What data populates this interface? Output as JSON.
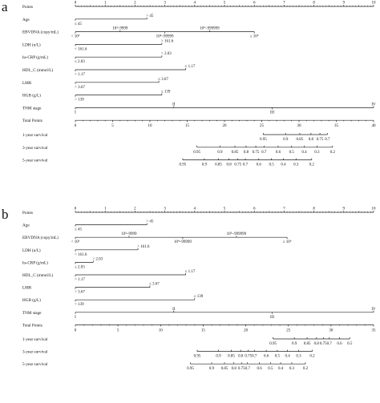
{
  "chart_data": [
    {
      "type": "nomogram",
      "panel": "a",
      "points_axis": {
        "ticks": [
          "0",
          "1",
          "2",
          "3",
          "4",
          "5",
          "6",
          "7",
          "8",
          "9",
          "10"
        ]
      },
      "rows": [
        {
          "label": "Points",
          "kind": "points_scale"
        },
        {
          "label": "Age",
          "ticks": [
            {
              "label": "> 45",
              "value": 2.4
            },
            {
              "label": "≤ 45",
              "value": 0
            }
          ]
        },
        {
          "label": "EBVDNA (copy/mL)",
          "ticks": [
            {
              "label": "< 10³",
              "value": 0
            },
            {
              "label": "10³~9999",
              "value": 1.5
            },
            {
              "label": "10⁴~99999",
              "value": 3
            },
            {
              "label": "10⁵~999999",
              "value": 4.5
            },
            {
              "label": "≥ 10⁶",
              "value": 6.0
            }
          ]
        },
        {
          "label": "LDH (u/L)",
          "ticks": [
            {
              "label": "> 161.6",
              "value": 2.9
            },
            {
              "label": "< 161.6",
              "value": 0
            }
          ]
        },
        {
          "label": "hs-CRP (g/mL)",
          "ticks": [
            {
              "label": "> 2.03",
              "value": 2.9
            },
            {
              "label": "≤ 2.03",
              "value": 0
            }
          ]
        },
        {
          "label": "HDL_C (mmol/L)",
          "ticks": [
            {
              "label": "≤ 1.17",
              "value": 3.7
            },
            {
              "label": "> 1.17",
              "value": 0
            }
          ]
        },
        {
          "label": "LMR",
          "ticks": [
            {
              "label": "≤ 3.67",
              "value": 2.8
            },
            {
              "label": "> 3.67",
              "value": 0
            }
          ]
        },
        {
          "label": "HGB (g/L)",
          "ticks": [
            {
              "label": "≤ 139",
              "value": 2.9
            },
            {
              "label": "> 139",
              "value": 0
            }
          ]
        },
        {
          "label": "TNM stage",
          "ticks": [
            {
              "label": "I",
              "value": 0
            },
            {
              "label": "II",
              "value": 3.3
            },
            {
              "label": "III",
              "value": 6.6
            },
            {
              "label": "IV",
              "value": 10
            }
          ]
        }
      ],
      "total_points": {
        "label": "Total Points",
        "min": 0,
        "max": 40,
        "ticks": [
          "0",
          "5",
          "10",
          "15",
          "20",
          "25",
          "30",
          "35",
          "40"
        ]
      },
      "survival": [
        {
          "label": "1-year survival",
          "ticks": [
            {
              "label": "0.95",
              "points": 25.2
            },
            {
              "label": "0.9",
              "points": 28.2
            },
            {
              "label": "0.85",
              "points": 30.1
            },
            {
              "label": "0.8",
              "points": 31.6
            },
            {
              "label": "0.75",
              "points": 32.8
            },
            {
              "label": "0.7",
              "points": 33.8
            }
          ]
        },
        {
          "label": "3-year survival",
          "ticks": [
            {
              "label": "0.95",
              "points": 16.3
            },
            {
              "label": "0.9",
              "points": 19.4
            },
            {
              "label": "0.85",
              "points": 21.4
            },
            {
              "label": "0.8",
              "points": 22.9
            },
            {
              "label": "0.75",
              "points": 24.2
            },
            {
              "label": "0.7",
              "points": 25.3
            },
            {
              "label": "0.6",
              "points": 27.2
            },
            {
              "label": "0.5",
              "points": 29.0
            },
            {
              "label": "0.4",
              "points": 30.7
            },
            {
              "label": "0.3",
              "points": 32.4
            },
            {
              "label": "0.2",
              "points": 34.5
            }
          ]
        },
        {
          "label": "5-year survival",
          "ticks": [
            {
              "label": "0.95",
              "points": 14.4
            },
            {
              "label": "0.9",
              "points": 17.3
            },
            {
              "label": "0.85",
              "points": 19.2
            },
            {
              "label": "0.8",
              "points": 20.6
            },
            {
              "label": "0.75",
              "points": 21.8
            },
            {
              "label": "0.7",
              "points": 22.8
            },
            {
              "label": "0.6",
              "points": 24.6
            },
            {
              "label": "0.5",
              "points": 26.3
            },
            {
              "label": "0.4",
              "points": 27.9
            },
            {
              "label": "0.3",
              "points": 29.6
            },
            {
              "label": "0.2",
              "points": 31.7
            }
          ]
        }
      ]
    },
    {
      "type": "nomogram",
      "panel": "b",
      "points_axis": {
        "ticks": [
          "0",
          "1",
          "2",
          "3",
          "4",
          "5",
          "6",
          "7",
          "8",
          "9",
          "10"
        ]
      },
      "rows": [
        {
          "label": "Points",
          "kind": "points_scale"
        },
        {
          "label": "Age",
          "ticks": [
            {
              "label": "> 45",
              "value": 2.4
            },
            {
              "label": "≤ 45",
              "value": 0
            }
          ]
        },
        {
          "label": "EBVDNA (copy/mL)",
          "ticks": [
            {
              "label": "< 10³",
              "value": 0
            },
            {
              "label": "10³~9999",
              "value": 1.8
            },
            {
              "label": "10⁴~99999",
              "value": 3.6
            },
            {
              "label": "10⁵~999999",
              "value": 5.4
            },
            {
              "label": "≥ 10⁶",
              "value": 7.1
            }
          ]
        },
        {
          "label": "LDH (u/L)",
          "ticks": [
            {
              "label": "> 161.6",
              "value": 2.1
            },
            {
              "label": "< 161.6",
              "value": 0
            }
          ]
        },
        {
          "label": "hs-CRP (g/mL)",
          "ticks": [
            {
              "label": "> 2.03",
              "value": 0.6
            },
            {
              "label": "≤ 2.03",
              "value": 0
            }
          ]
        },
        {
          "label": "HDL_C (mmol/L)",
          "ticks": [
            {
              "label": "≤ 1.17",
              "value": 3.7
            },
            {
              "label": "> 1.17",
              "value": 0
            }
          ]
        },
        {
          "label": "LMR",
          "ticks": [
            {
              "label": "≤ 3.67",
              "value": 2.5
            },
            {
              "label": "> 3.67",
              "value": 0
            }
          ]
        },
        {
          "label": "HGB (g/L)",
          "ticks": [
            {
              "label": "≤ 139",
              "value": 4.0
            },
            {
              "label": "> 139",
              "value": 0
            }
          ]
        },
        {
          "label": "TNM stage",
          "ticks": [
            {
              "label": "I",
              "value": 0
            },
            {
              "label": "II",
              "value": 3.3
            },
            {
              "label": "III",
              "value": 6.6
            },
            {
              "label": "IV",
              "value": 10
            }
          ]
        }
      ],
      "total_points": {
        "label": "Total Points",
        "min": 0,
        "max": 35,
        "ticks": [
          "0",
          "5",
          "10",
          "15",
          "20",
          "25",
          "30",
          "35"
        ]
      },
      "survival": [
        {
          "label": "1-year survival",
          "ticks": [
            {
              "label": "0.95",
              "points": 23.2
            },
            {
              "label": "0.9",
              "points": 25.7
            },
            {
              "label": "0.85",
              "points": 27.2
            },
            {
              "label": "0.8",
              "points": 28.3
            },
            {
              "label": "0.75",
              "points": 29.1
            },
            {
              "label": "0.7",
              "points": 29.8
            },
            {
              "label": "0.6",
              "points": 31.0
            },
            {
              "label": "0.5",
              "points": 32.2
            }
          ]
        },
        {
          "label": "3-year survival",
          "ticks": [
            {
              "label": "0.95",
              "points": 14.3
            },
            {
              "label": "0.9",
              "points": 16.8
            },
            {
              "label": "0.85",
              "points": 18.3
            },
            {
              "label": "0.8",
              "points": 19.4
            },
            {
              "label": "0.75",
              "points": 20.3
            },
            {
              "label": "0.7",
              "points": 21.0
            },
            {
              "label": "0.6",
              "points": 22.4
            },
            {
              "label": "0.5",
              "points": 23.7
            },
            {
              "label": "0.4",
              "points": 24.9
            },
            {
              "label": "0.3",
              "points": 26.2
            },
            {
              "label": "0.2",
              "points": 27.8
            }
          ]
        },
        {
          "label": "5-year survival",
          "ticks": [
            {
              "label": "0.95",
              "points": 13.5
            },
            {
              "label": "0.9",
              "points": 16.0
            },
            {
              "label": "0.85",
              "points": 17.5
            },
            {
              "label": "0.8",
              "points": 18.6
            },
            {
              "label": "0.75",
              "points": 19.5
            },
            {
              "label": "0.7",
              "points": 20.2
            },
            {
              "label": "0.6",
              "points": 21.6
            },
            {
              "label": "0.5",
              "points": 22.9
            },
            {
              "label": "0.4",
              "points": 24.1
            },
            {
              "label": "0.3",
              "points": 25.4
            },
            {
              "label": "0.2",
              "points": 27.0
            }
          ]
        }
      ]
    }
  ]
}
